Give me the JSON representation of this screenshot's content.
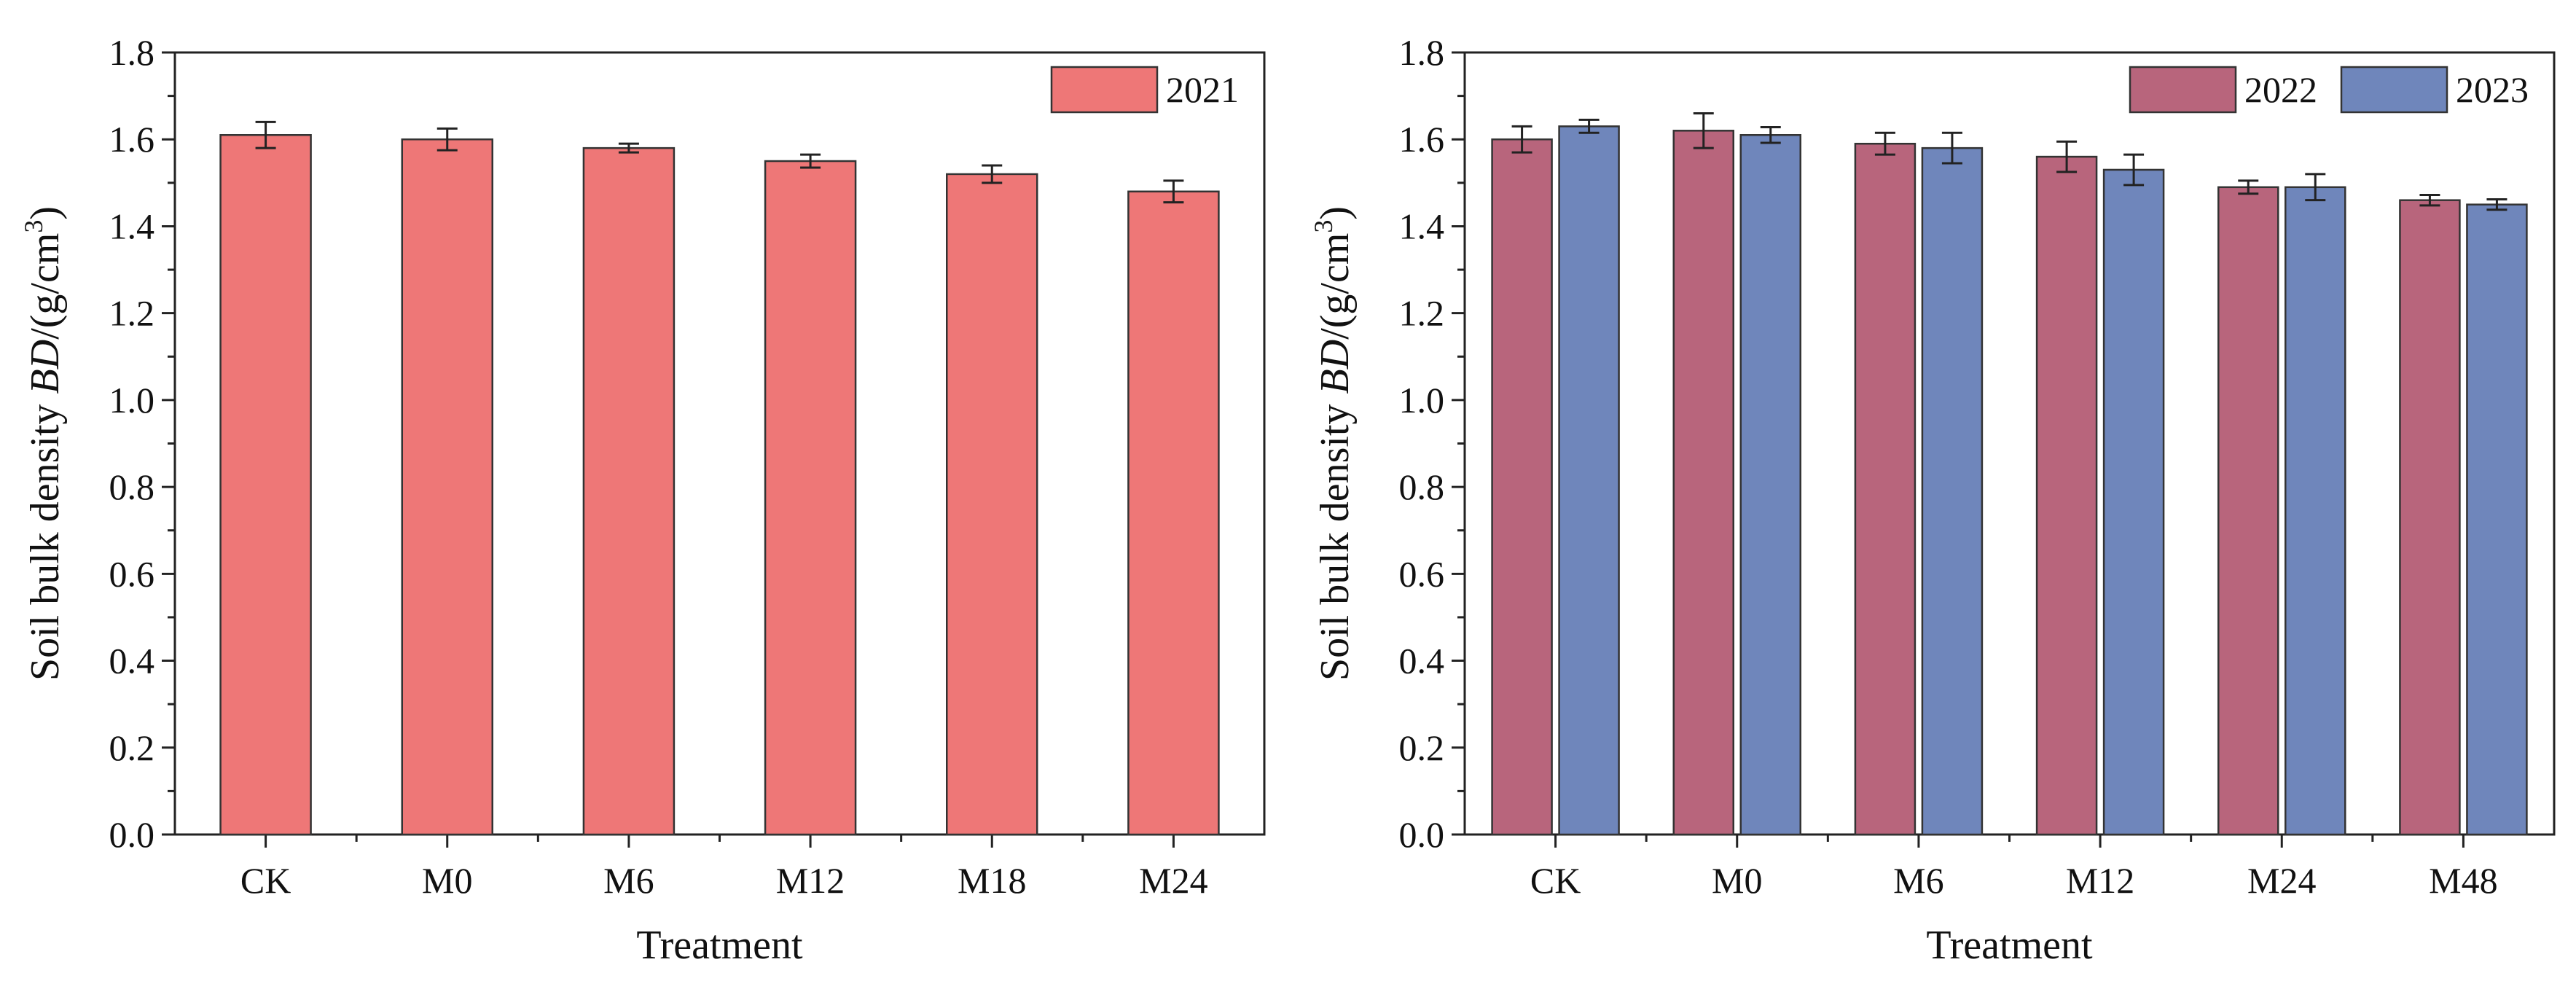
{
  "chart_data": [
    {
      "type": "bar",
      "title": "",
      "xlabel": "Treatment",
      "ylabel_prefix": "Soil bulk density ",
      "ylabel_italic": "BD",
      "ylabel_unit": "/(g/cm",
      "ylabel_sup": "3",
      "ylabel_close": ")",
      "ylim": [
        0,
        1.8
      ],
      "yticks": [
        "0.0",
        "0.2",
        "0.4",
        "0.6",
        "0.8",
        "1.0",
        "1.2",
        "1.4",
        "1.6",
        "1.8"
      ],
      "categories": [
        "CK",
        "M0",
        "M6",
        "M12",
        "M18",
        "M24"
      ],
      "legend_position": "top-right",
      "series": [
        {
          "name": "2021",
          "color": "#ee7777",
          "values": [
            1.61,
            1.6,
            1.58,
            1.55,
            1.52,
            1.48
          ],
          "errors": [
            0.03,
            0.025,
            0.01,
            0.015,
            0.02,
            0.025
          ]
        }
      ]
    },
    {
      "type": "bar",
      "title": "",
      "xlabel": "Treatment",
      "ylabel_prefix": "Soil bulk density ",
      "ylabel_italic": "BD",
      "ylabel_unit": "/(g/cm",
      "ylabel_sup": "3",
      "ylabel_close": ")",
      "ylim": [
        0,
        1.8
      ],
      "yticks": [
        "0.0",
        "0.2",
        "0.4",
        "0.6",
        "0.8",
        "1.0",
        "1.2",
        "1.4",
        "1.6",
        "1.8"
      ],
      "categories": [
        "CK",
        "M0",
        "M6",
        "M12",
        "M24",
        "M48"
      ],
      "legend_position": "top-right",
      "series": [
        {
          "name": "2022",
          "color": "#b8657c",
          "values": [
            1.6,
            1.62,
            1.59,
            1.56,
            1.49,
            1.46
          ],
          "errors": [
            0.03,
            0.04,
            0.025,
            0.035,
            0.015,
            0.012
          ]
        },
        {
          "name": "2023",
          "color": "#6f86bb",
          "values": [
            1.63,
            1.61,
            1.58,
            1.53,
            1.49,
            1.45
          ],
          "errors": [
            0.015,
            0.018,
            0.035,
            0.035,
            0.03,
            0.012
          ]
        }
      ]
    }
  ]
}
